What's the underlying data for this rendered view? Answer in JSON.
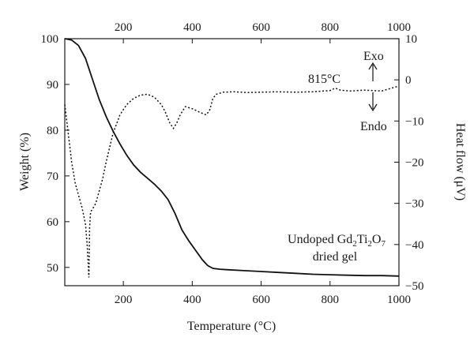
{
  "chart_data": {
    "type": "line",
    "title": "",
    "xlabel": "Temperature (°C)",
    "ylabel_left": "Weight (%)",
    "ylabel_right": "Heat flow (μV)",
    "xlim": [
      30,
      1000
    ],
    "ylim_left": [
      46,
      100
    ],
    "ylim_right": [
      -50,
      10
    ],
    "x_ticks": [
      200,
      400,
      600,
      800,
      1000
    ],
    "y_ticks_left": [
      50,
      60,
      70,
      80,
      90,
      100
    ],
    "y_ticks_right": [
      10,
      0,
      -10,
      -20,
      -30,
      -40,
      -50
    ],
    "grid": false,
    "series": [
      {
        "axis": "left",
        "style": "solid",
        "x": [
          30,
          50,
          70,
          90,
          110,
          130,
          150,
          170,
          190,
          210,
          230,
          250,
          270,
          290,
          310,
          330,
          350,
          370,
          390,
          410,
          430,
          445,
          460,
          480,
          500,
          550,
          600,
          650,
          700,
          750,
          800,
          850,
          900,
          950,
          1000
        ],
        "y": [
          100,
          99.7,
          98.5,
          95.7,
          91.2,
          86.7,
          83.0,
          79.8,
          77.0,
          74.5,
          72.4,
          70.8,
          69.5,
          68.2,
          66.7,
          64.8,
          61.8,
          58.2,
          55.8,
          53.7,
          51.6,
          50.4,
          49.8,
          49.6,
          49.5,
          49.3,
          49.1,
          48.9,
          48.7,
          48.5,
          48.4,
          48.3,
          48.2,
          48.2,
          48.1
        ]
      },
      {
        "axis": "right",
        "style": "dotted",
        "x": [
          30,
          40,
          50,
          60,
          70,
          80,
          90,
          95,
          98,
          100,
          102,
          105,
          110,
          120,
          130,
          140,
          150,
          170,
          190,
          210,
          230,
          250,
          270,
          290,
          310,
          320,
          335,
          345,
          355,
          365,
          380,
          400,
          420,
          440,
          450,
          460,
          470,
          490,
          520,
          560,
          600,
          650,
          700,
          750,
          800,
          815,
          830,
          860,
          900,
          950,
          1000
        ],
        "y": [
          -6,
          -13,
          -20,
          -25,
          -28,
          -31,
          -35,
          -40,
          -45,
          -48,
          -36,
          -32,
          -31.5,
          -30,
          -27,
          -24,
          -20,
          -13,
          -8.5,
          -6,
          -4.5,
          -3.7,
          -3.5,
          -4.2,
          -6,
          -7.5,
          -10.5,
          -11.8,
          -10.5,
          -8.5,
          -6.5,
          -7,
          -7.8,
          -8.5,
          -7.5,
          -4.5,
          -3.5,
          -3,
          -2.9,
          -3.1,
          -3.0,
          -2.9,
          -3.0,
          -2.9,
          -2.6,
          -2.0,
          -2.5,
          -2.7,
          -2.5,
          -2.7,
          -1.5
        ]
      }
    ],
    "annotations": {
      "peak_label": "815°C",
      "exo_label": "Exo",
      "endo_label": "Endo",
      "sample_prefix": "Undoped Gd",
      "sub_a": "2",
      "mid_ti": "Ti",
      "sub_b": "2",
      "mid_o": "O",
      "sub_c": "7",
      "sample_line2": "dried gel"
    }
  }
}
